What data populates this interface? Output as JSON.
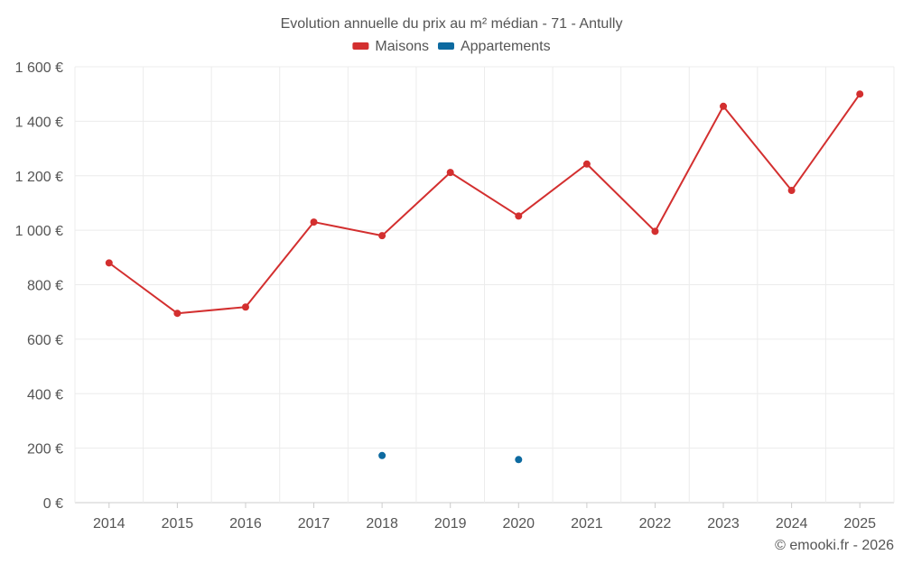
{
  "chart_data": {
    "type": "line",
    "title": "Evolution annuelle du prix au m² médian - 71 - Antully",
    "x": [
      "2014",
      "2015",
      "2016",
      "2017",
      "2018",
      "2019",
      "2020",
      "2021",
      "2022",
      "2023",
      "2024",
      "2025"
    ],
    "ylim": [
      0,
      1600
    ],
    "yticks": [
      0,
      200,
      400,
      600,
      800,
      1000,
      1200,
      1400,
      1600
    ],
    "ytick_labels": [
      "0 €",
      "200 €",
      "400 €",
      "600 €",
      "800 €",
      "1 000 €",
      "1 200 €",
      "1 400 €",
      "1 600 €"
    ],
    "grid": true,
    "legend_position": "top-center",
    "series": [
      {
        "name": "Maisons",
        "color": "#d32f2f",
        "values": [
          880,
          695,
          718,
          1030,
          980,
          1212,
          1052,
          1243,
          996,
          1455,
          1146,
          1500
        ]
      },
      {
        "name": "Appartements",
        "color": "#0d6aa0",
        "values": [
          null,
          null,
          null,
          null,
          173,
          null,
          158,
          null,
          null,
          null,
          null,
          null
        ]
      }
    ]
  },
  "credit": "© emooki.fr - 2026"
}
